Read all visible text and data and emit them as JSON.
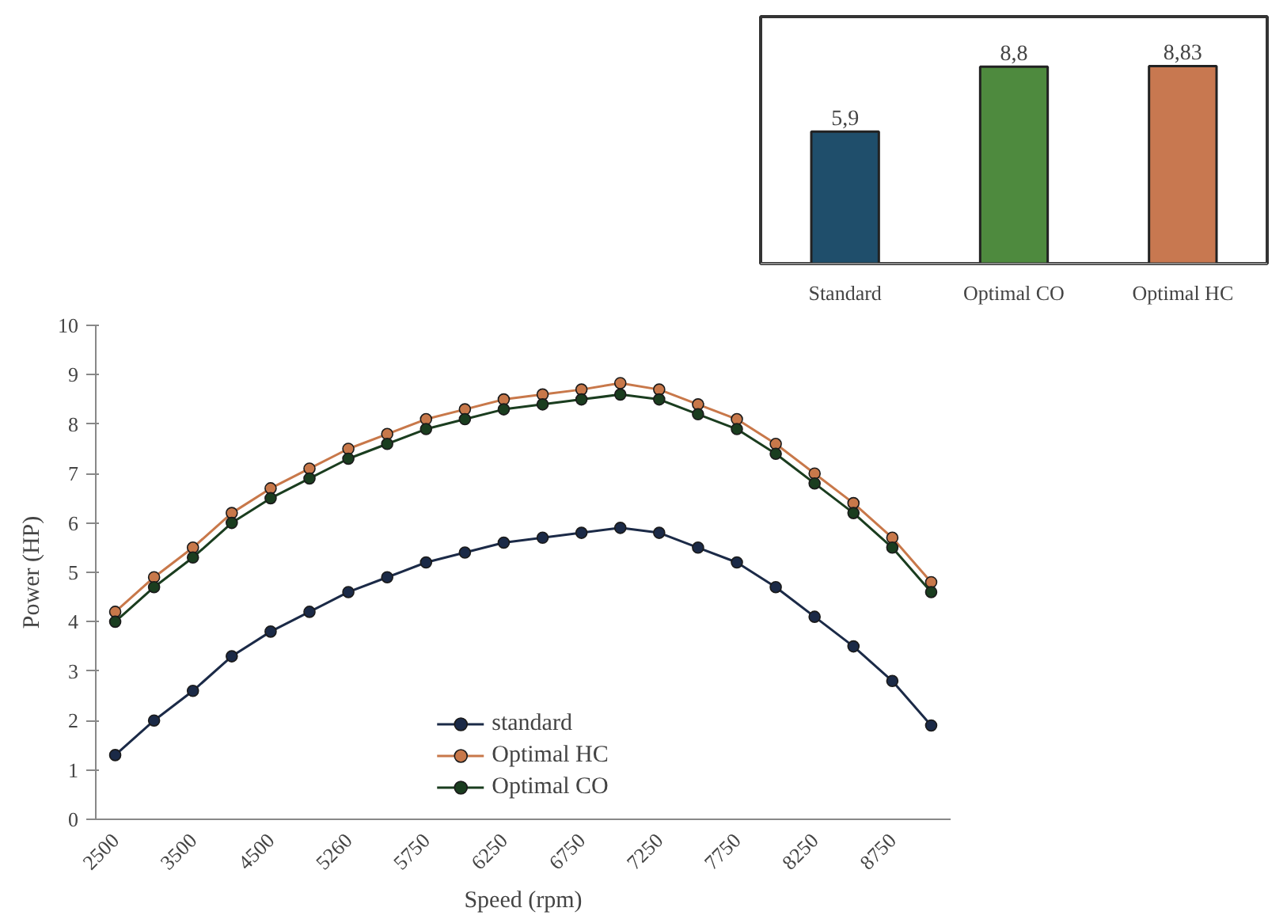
{
  "chart_data": [
    {
      "type": "bar",
      "categories": [
        "Standard",
        "Optimal CO",
        "Optimal HC"
      ],
      "values": [
        5.9,
        8.8,
        8.83
      ],
      "colors": [
        "#1f4e6b",
        "#4e8a3e",
        "#c87850"
      ],
      "value_labels": [
        "5,9",
        "8,8",
        "8,83"
      ],
      "tick_labels": "x",
      "grid": false
    },
    {
      "type": "line",
      "xlabel": "Speed (rpm)",
      "ylabel": "Power (HP)",
      "categories": [
        "2500",
        null,
        "3500",
        null,
        "4500",
        null,
        "5260",
        null,
        "5750",
        null,
        "6250",
        null,
        "6750",
        null,
        "7250",
        null,
        "7750",
        null,
        "8250",
        null,
        "8750",
        null
      ],
      "ylim": [
        0,
        10
      ],
      "yticks": [
        0,
        1,
        2,
        3,
        4,
        5,
        6,
        7,
        8,
        9,
        10
      ],
      "grid": false,
      "legend": "bottom",
      "marker": "circle",
      "line_style": "solid",
      "series": [
        {
          "name": "standard",
          "color": "#1b2a47",
          "values": [
            1.3,
            2.0,
            2.6,
            3.3,
            3.8,
            4.2,
            4.6,
            4.9,
            5.2,
            5.4,
            5.6,
            5.7,
            5.8,
            5.9,
            5.8,
            5.5,
            5.2,
            4.7,
            4.1,
            3.5,
            2.8,
            1.9
          ]
        },
        {
          "name": "Optimal HC",
          "color": "#c8784a",
          "values": [
            4.2,
            4.9,
            5.5,
            6.2,
            6.7,
            7.1,
            7.5,
            7.8,
            8.1,
            8.3,
            8.5,
            8.6,
            8.7,
            8.83,
            8.7,
            8.4,
            8.1,
            7.6,
            7.0,
            6.4,
            5.7,
            4.8
          ]
        },
        {
          "name": "Optimal CO",
          "color": "#1a3d1f",
          "values": [
            4.0,
            4.7,
            5.3,
            6.0,
            6.5,
            6.9,
            7.3,
            7.6,
            7.9,
            8.1,
            8.3,
            8.4,
            8.5,
            8.6,
            8.5,
            8.2,
            7.9,
            7.4,
            6.8,
            6.2,
            5.5,
            4.6
          ]
        }
      ]
    }
  ]
}
